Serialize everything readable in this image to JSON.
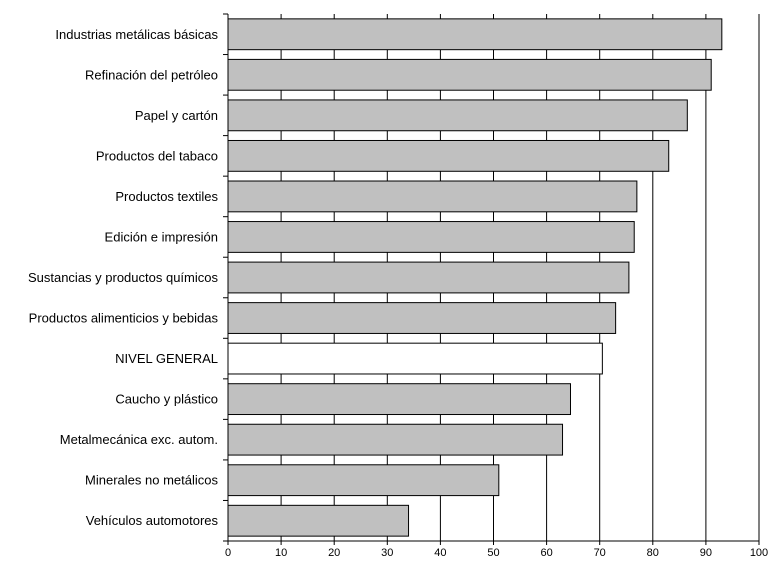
{
  "chart_data": {
    "type": "bar",
    "orientation": "horizontal",
    "categories": [
      "Industrias metálicas básicas",
      "Refinación del petróleo",
      "Papel y cartón",
      "Productos del tabaco",
      "Productos textiles",
      "Edición e impresión",
      "Sustancias y productos químicos",
      "Productos alimenticios y bebidas",
      "NIVEL GENERAL",
      "Caucho y plástico",
      "Metalmecánica exc. autom.",
      "Minerales no metálicos",
      "Vehículos automotores"
    ],
    "values": [
      93,
      91,
      86.5,
      83,
      77,
      76.5,
      75.5,
      73,
      70.5,
      64.5,
      63,
      51,
      34
    ],
    "highlight_category": "NIVEL GENERAL",
    "xlim": [
      0,
      100
    ],
    "xticks": [
      0,
      10,
      20,
      30,
      40,
      50,
      60,
      70,
      80,
      90,
      100
    ],
    "grid": "vertical",
    "bar_color": "#c0c0c0",
    "highlight_color": "#ffffff",
    "title": "",
    "xlabel": "",
    "ylabel": ""
  }
}
